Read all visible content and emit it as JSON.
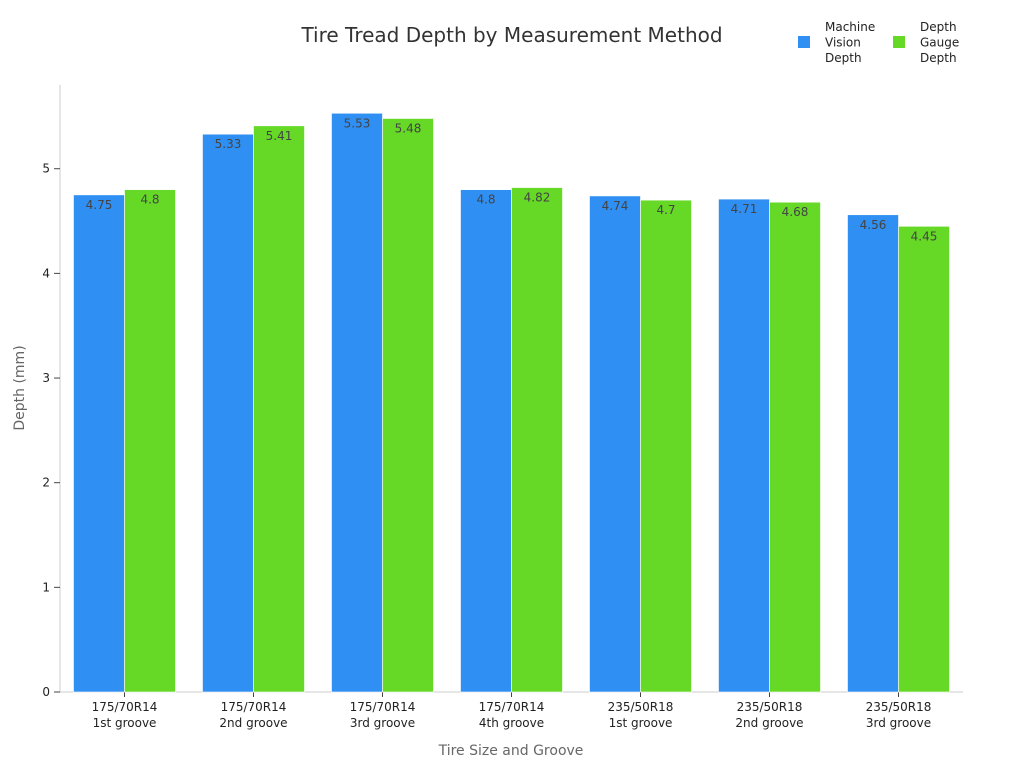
{
  "chart_data": {
    "type": "bar",
    "title": "Tire Tread Depth by Measurement Method",
    "xlabel": "Tire Size and Groove",
    "ylabel": "Depth (mm)",
    "ylim": [
      0,
      5.8
    ],
    "yticks": [
      0,
      1,
      2,
      3,
      4,
      5
    ],
    "grid": false,
    "legend_position": "top-right",
    "categories": [
      [
        "175/70R14",
        "1st groove"
      ],
      [
        "175/70R14",
        "2nd groove"
      ],
      [
        "175/70R14",
        "3rd groove"
      ],
      [
        "175/70R14",
        "4th groove"
      ],
      [
        "235/50R18",
        "1st groove"
      ],
      [
        "235/50R18",
        "2nd groove"
      ],
      [
        "235/50R18",
        "3rd groove"
      ]
    ],
    "series": [
      {
        "name": "Machine Vision Depth",
        "legend_lines": [
          "Machine",
          "Vision",
          "Depth"
        ],
        "color": "#2f8ff2",
        "values": [
          4.75,
          5.33,
          5.53,
          4.8,
          4.74,
          4.71,
          4.56
        ]
      },
      {
        "name": "Depth Gauge Depth",
        "legend_lines": [
          "Depth",
          "Gauge",
          "Depth"
        ],
        "color": "#66d926",
        "values": [
          4.8,
          5.41,
          5.48,
          4.82,
          4.7,
          4.68,
          4.45
        ]
      }
    ]
  }
}
